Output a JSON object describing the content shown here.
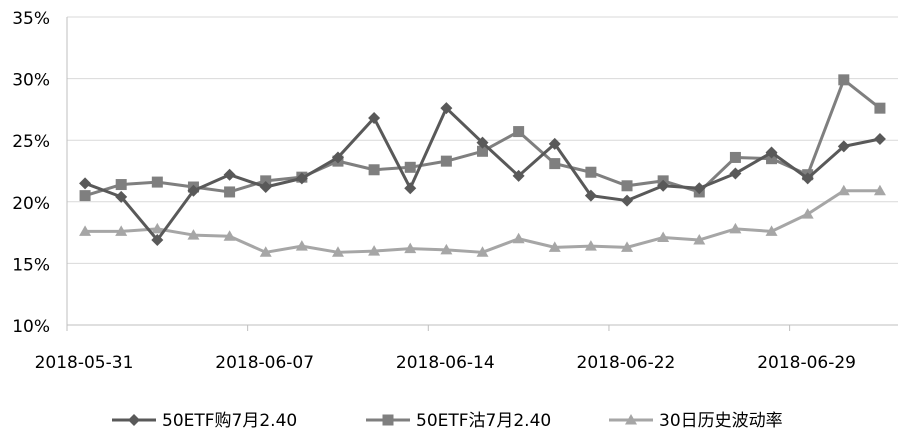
{
  "chart_data": {
    "type": "line",
    "title": "",
    "xlabel": "",
    "ylabel": "",
    "ylim": [
      10,
      35
    ],
    "yticks": [
      "10%",
      "15%",
      "20%",
      "25%",
      "30%",
      "35%"
    ],
    "ytick_values": [
      10,
      15,
      20,
      25,
      30,
      35
    ],
    "x_tick_labels": [
      "2018-05-31",
      "2018-06-07",
      "2018-06-14",
      "2018-06-22",
      "2018-06-29"
    ],
    "x_tick_indices": [
      0,
      5,
      10,
      15,
      20
    ],
    "n_points": 23,
    "grid": "horizontal",
    "legend_position": "bottom",
    "series": [
      {
        "name": "50ETF购7月2.40",
        "marker": "diamond",
        "color": "#595959",
        "values": [
          21.5,
          20.4,
          16.9,
          20.9,
          22.2,
          21.2,
          21.9,
          23.6,
          26.8,
          21.1,
          27.6,
          24.8,
          22.1,
          24.7,
          20.5,
          20.1,
          21.3,
          21.1,
          22.3,
          24.0,
          21.9,
          24.5,
          25.1
        ]
      },
      {
        "name": "50ETF沽7月2.40",
        "marker": "square",
        "color": "#7f7f7f",
        "values": [
          20.5,
          21.4,
          21.6,
          21.2,
          20.8,
          21.7,
          22.0,
          23.3,
          22.6,
          22.8,
          23.3,
          24.1,
          25.7,
          23.1,
          22.4,
          21.3,
          21.7,
          20.8,
          23.6,
          23.5,
          22.2,
          29.9,
          27.6
        ]
      },
      {
        "name": "30日历史波动率",
        "marker": "triangle",
        "color": "#a6a6a6",
        "values": [
          17.6,
          17.6,
          17.8,
          17.3,
          17.2,
          15.9,
          16.4,
          15.9,
          16.0,
          16.2,
          16.1,
          15.9,
          17.0,
          16.3,
          16.4,
          16.3,
          17.1,
          16.9,
          17.8,
          17.6,
          19.0,
          20.9,
          20.9
        ]
      }
    ]
  }
}
